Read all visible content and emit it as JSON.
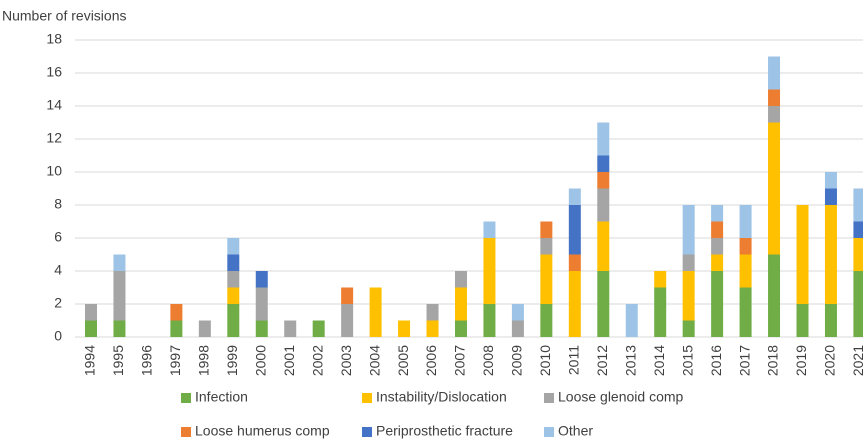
{
  "chart_data": {
    "type": "stacked-bar",
    "y_label": "Number of revisions",
    "categories": [
      "1994",
      "1995",
      "1996",
      "1997",
      "1998",
      "1999",
      "2000",
      "2001",
      "2002",
      "2003",
      "2004",
      "2005",
      "2006",
      "2007",
      "2008",
      "2009",
      "2010",
      "2011",
      "2012",
      "2013",
      "2014",
      "2015",
      "2016",
      "2017",
      "2018",
      "2019",
      "2020",
      "2021"
    ],
    "series": [
      {
        "name": "Infection",
        "color": "#70ad47",
        "values": [
          1,
          1,
          0,
          1,
          0,
          2,
          1,
          0,
          1,
          0,
          0,
          0,
          0,
          1,
          2,
          0,
          2,
          0,
          4,
          0,
          3,
          1,
          4,
          3,
          5,
          2,
          2,
          4
        ]
      },
      {
        "name": "Instability/Dislocation",
        "color": "#ffc000",
        "values": [
          0,
          0,
          0,
          0,
          0,
          1,
          0,
          0,
          0,
          0,
          3,
          1,
          1,
          2,
          4,
          0,
          3,
          4,
          3,
          0,
          1,
          3,
          1,
          2,
          8,
          6,
          6,
          2
        ]
      },
      {
        "name": "Loose glenoid comp",
        "color": "#a5a5a5",
        "values": [
          1,
          3,
          0,
          0,
          1,
          1,
          2,
          1,
          0,
          2,
          0,
          0,
          1,
          1,
          0,
          1,
          1,
          0,
          2,
          0,
          0,
          1,
          1,
          0,
          1,
          0,
          0,
          0
        ]
      },
      {
        "name": "Loose humerus comp",
        "color": "#ed7d31",
        "values": [
          0,
          0,
          0,
          1,
          0,
          0,
          0,
          0,
          0,
          1,
          0,
          0,
          0,
          0,
          0,
          0,
          1,
          1,
          1,
          0,
          0,
          0,
          1,
          1,
          1,
          0,
          0,
          0
        ]
      },
      {
        "name": "Periprosthetic fracture",
        "color": "#4472c4",
        "values": [
          0,
          0,
          0,
          0,
          0,
          1,
          1,
          0,
          0,
          0,
          0,
          0,
          0,
          0,
          0,
          0,
          0,
          3,
          1,
          0,
          0,
          0,
          0,
          0,
          0,
          0,
          1,
          1
        ]
      },
      {
        "name": "Other",
        "color": "#9dc3e6",
        "values": [
          0,
          1,
          0,
          0,
          0,
          1,
          0,
          0,
          0,
          0,
          0,
          0,
          0,
          0,
          1,
          1,
          0,
          1,
          2,
          2,
          0,
          3,
          1,
          2,
          2,
          0,
          1,
          2
        ]
      }
    ],
    "ylim": [
      0,
      18
    ],
    "yticks": [
      0,
      2,
      4,
      6,
      8,
      10,
      12,
      14,
      16,
      18
    ],
    "grid": true
  }
}
